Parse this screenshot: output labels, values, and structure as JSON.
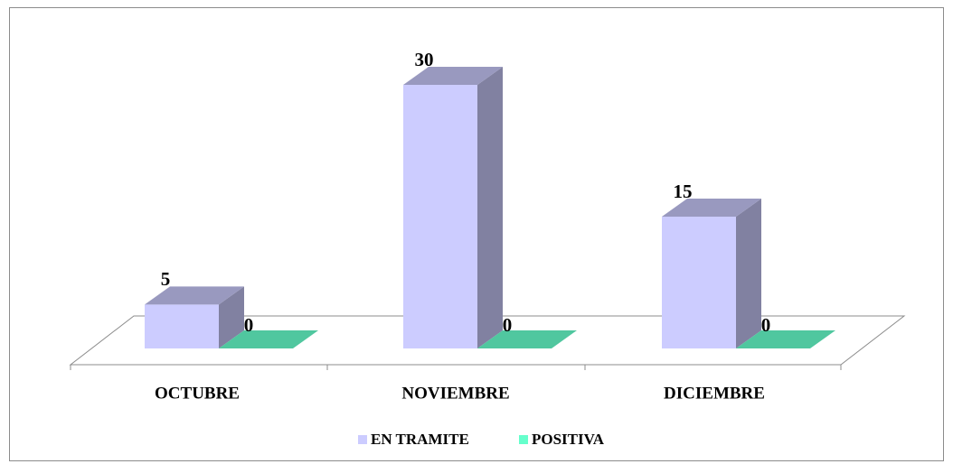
{
  "chart_data": {
    "type": "bar3d",
    "categories": [
      "OCTUBRE",
      "NOVIEMBRE",
      "DICIEMBRE"
    ],
    "series": [
      {
        "name": "EN TRAMITE",
        "color": "#ccccff",
        "values": [
          5,
          30,
          15
        ]
      },
      {
        "name": "POSITIVA",
        "color": "#66ffcc",
        "values": [
          0,
          0,
          0
        ]
      }
    ],
    "legend": "bottom"
  }
}
